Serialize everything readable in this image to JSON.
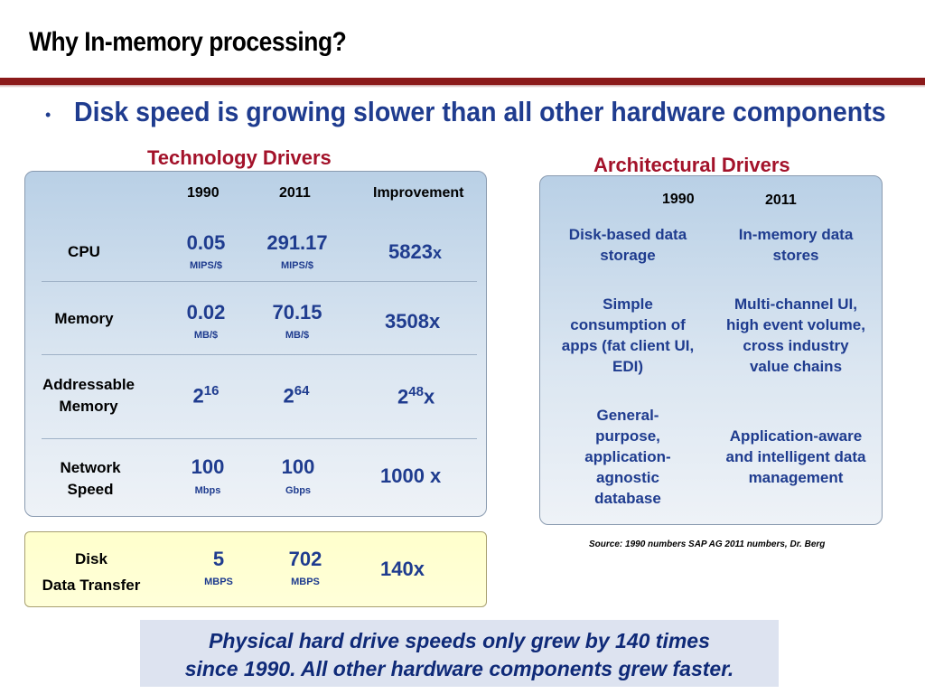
{
  "slide": {
    "title": "Why In-memory processing?",
    "bullet": "Disk speed is growing slower than all other hardware components"
  },
  "technology": {
    "title": "Technology Drivers",
    "headers": {
      "col1": "1990",
      "col2": "2011",
      "col3": "Improvement"
    },
    "rows": [
      {
        "label": "CPU",
        "v1990": "0.05",
        "u1990": "MIPS/$",
        "v2011": "291.17",
        "u2011": "MIPS/$",
        "improvement": "5823",
        "improvement_suffix": "x"
      },
      {
        "label": "Memory",
        "v1990": "0.02",
        "u1990": "MB/$",
        "v2011": "70.15",
        "u2011": "MB/$",
        "improvement": "3508x"
      },
      {
        "label_line1": "Addressable",
        "label_line2": "Memory",
        "v1990_base": "2",
        "v1990_exp": "16",
        "v2011_base": "2",
        "v2011_exp": "64",
        "impr_base": "2",
        "impr_exp": "48",
        "impr_suffix": "x"
      },
      {
        "label_line1": "Network",
        "label_line2": "Speed",
        "v1990": "100",
        "u1990": "Mbps",
        "v2011": "100",
        "u2011": "Gbps",
        "improvement": "1000 x"
      }
    ]
  },
  "disk": {
    "label_line1": "Disk",
    "label_line2": "Data Transfer",
    "v1990": "5",
    "u1990": "MBPS",
    "v2011": "702",
    "u2011": "MBPS",
    "improvement": "140x"
  },
  "architecture": {
    "title": "Architectural Drivers",
    "headers": {
      "col1": "1990",
      "col2": "2011"
    },
    "rows": [
      {
        "c1990": "Disk-based data storage",
        "c2011": "In-memory data stores"
      },
      {
        "c1990": "Simple consumption of apps (fat client UI, EDI)",
        "c2011": "Multi-channel UI, high event volume, cross industry value chains"
      },
      {
        "c1990": "General-purpose, application-agnostic database",
        "c2011": "Application-aware and intelligent  data management"
      }
    ],
    "source": "Source: 1990 numbers SAP AG 2011 numbers, Dr. Berg"
  },
  "callout": {
    "line1": "Physical hard drive speeds only grew by 140 times",
    "line2": "since 1990. All other hardware components grew faster."
  },
  "colors": {
    "accent_red": "#8b1a1a",
    "title_red": "#a3122a",
    "blue_text": "#1f3c8f",
    "panel_blue": "#b9d0e6",
    "disk_yellow": "#ffffcc"
  }
}
